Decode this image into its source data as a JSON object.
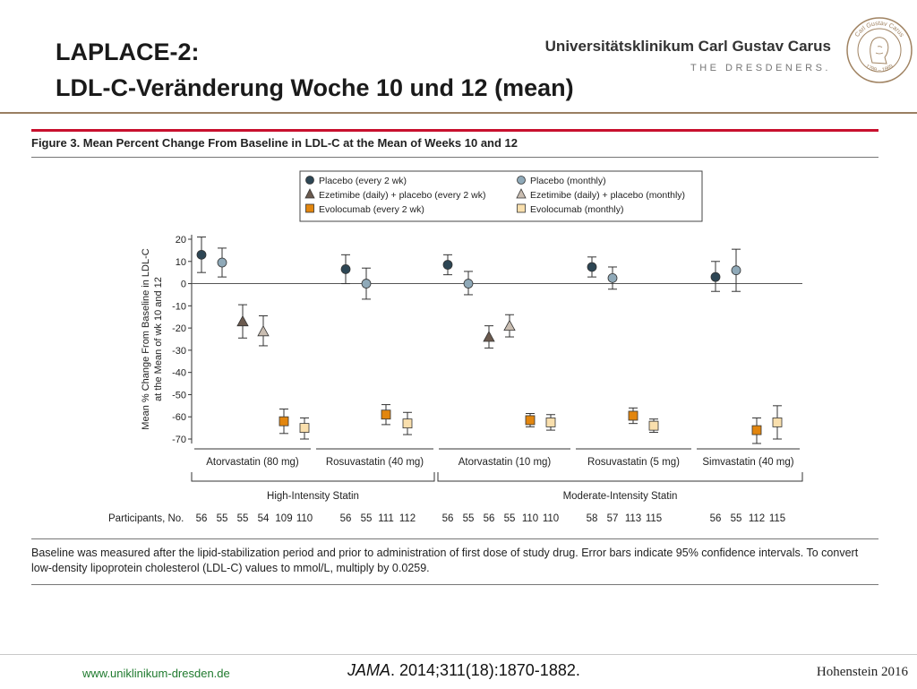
{
  "header": {
    "title_line1": "LAPLACE-2:",
    "title_line2": "LDL-C-Veränderung Woche 10 und 12 (mean)",
    "brand_name": "Universitätsklinikum Carl Gustav Carus",
    "brand_tagline": "THE DRESDENERS.",
    "seal_text_top": "Carl Gustav Carus",
    "seal_text_bottom": "1789 – 1869"
  },
  "figure": {
    "title": "Figure 3. Mean Percent Change From Baseline in LDL-C at the Mean of Weeks 10 and 12",
    "caption": "Baseline was measured after the lipid-stabilization period and prior to administration of first dose of study drug. Error bars indicate 95% confidence intervals. To convert low-density lipoprotein cholesterol (LDL-C) values to mmol/L, multiply by 0.0259."
  },
  "chart_data": {
    "type": "scatter",
    "title": "",
    "ylabel": "Mean % Change From Baseline in LDL-C at the Mean of wk 10 and 12",
    "ylabel_lines": [
      "Mean % Change From Baseline in LDL-C",
      "at the Mean of wk 10 and 12"
    ],
    "ylim": [
      -73,
      22
    ],
    "yticks": [
      20,
      10,
      0,
      -10,
      -20,
      -30,
      -40,
      -50,
      -60,
      -70
    ],
    "reference_line": 0,
    "legend_position": "top-center",
    "series_styles": [
      {
        "name": "Placebo (every 2 wk)",
        "shape": "circle",
        "color": "#2d4654"
      },
      {
        "name": "Placebo (monthly)",
        "shape": "circle",
        "color": "#8fa9b8"
      },
      {
        "name": "Ezetimibe (daily) + placebo (every 2 wk)",
        "shape": "triangle",
        "color": "#6b5a4e"
      },
      {
        "name": "Ezetimibe (daily) + placebo (monthly)",
        "shape": "triangle",
        "color": "#c9bdb1"
      },
      {
        "name": "Evolocumab (every 2 wk)",
        "shape": "square",
        "color": "#e2860f"
      },
      {
        "name": "Evolocumab (monthly)",
        "shape": "square",
        "color": "#f9dfad"
      }
    ],
    "categories": [
      "Atorvastatin (80 mg)",
      "Rosuvastatin (40 mg)",
      "Atorvastatin (10 mg)",
      "Rosuvastatin (5 mg)",
      "Simvastatin (40 mg)"
    ],
    "groups": [
      {
        "label": "High-Intensity Statin",
        "categories": [
          0,
          1
        ]
      },
      {
        "label": "Moderate-Intensity Statin",
        "categories": [
          2,
          3,
          4
        ]
      }
    ],
    "participants_label": "Participants, No.",
    "points": [
      {
        "category": 0,
        "series": 0,
        "value": 13,
        "ci": [
          5,
          21
        ],
        "n": "56"
      },
      {
        "category": 0,
        "series": 1,
        "value": 9.5,
        "ci": [
          3,
          16
        ],
        "n": "55"
      },
      {
        "category": 0,
        "series": 2,
        "value": -17,
        "ci": [
          -24.5,
          -9.5
        ],
        "n": "55"
      },
      {
        "category": 0,
        "series": 3,
        "value": -21.5,
        "ci": [
          -28,
          -14.5
        ],
        "n": "54"
      },
      {
        "category": 0,
        "series": 4,
        "value": -62,
        "ci": [
          -67.5,
          -56.5
        ],
        "n": "109"
      },
      {
        "category": 0,
        "series": 5,
        "value": -65,
        "ci": [
          -70,
          -60.5
        ],
        "n": "110"
      },
      {
        "category": 1,
        "series": 0,
        "value": 6.5,
        "ci": [
          0,
          13
        ],
        "n": "56"
      },
      {
        "category": 1,
        "series": 1,
        "value": 0,
        "ci": [
          -7,
          7
        ],
        "n": "55"
      },
      {
        "category": 1,
        "series": 4,
        "value": -59,
        "ci": [
          -63.5,
          -54.5
        ],
        "n": "111"
      },
      {
        "category": 1,
        "series": 5,
        "value": -63,
        "ci": [
          -68,
          -58
        ],
        "n": "112"
      },
      {
        "category": 2,
        "series": 0,
        "value": 8.5,
        "ci": [
          4,
          13
        ],
        "n": "56"
      },
      {
        "category": 2,
        "series": 1,
        "value": 0,
        "ci": [
          -5,
          5.5
        ],
        "n": "55"
      },
      {
        "category": 2,
        "series": 2,
        "value": -24,
        "ci": [
          -29,
          -19
        ],
        "n": "56"
      },
      {
        "category": 2,
        "series": 3,
        "value": -19,
        "ci": [
          -24,
          -14
        ],
        "n": "55"
      },
      {
        "category": 2,
        "series": 4,
        "value": -61.5,
        "ci": [
          -64.5,
          -58.5
        ],
        "n": "110"
      },
      {
        "category": 2,
        "series": 5,
        "value": -62.5,
        "ci": [
          -66,
          -59
        ],
        "n": "110"
      },
      {
        "category": 3,
        "series": 0,
        "value": 7.5,
        "ci": [
          3,
          12
        ],
        "n": "58"
      },
      {
        "category": 3,
        "series": 1,
        "value": 2.5,
        "ci": [
          -2.5,
          7.5
        ],
        "n": "57"
      },
      {
        "category": 3,
        "series": 4,
        "value": -59.5,
        "ci": [
          -63,
          -56
        ],
        "n": "113"
      },
      {
        "category": 3,
        "series": 5,
        "value": -64,
        "ci": [
          -67,
          -61
        ],
        "n": "115"
      },
      {
        "category": 4,
        "series": 0,
        "value": 3,
        "ci": [
          -3.5,
          10
        ],
        "n": "56"
      },
      {
        "category": 4,
        "series": 1,
        "value": 6,
        "ci": [
          -3.5,
          15.5
        ],
        "n": "55"
      },
      {
        "category": 4,
        "series": 4,
        "value": -66,
        "ci": [
          -72,
          -60.5
        ],
        "n": "112"
      },
      {
        "category": 4,
        "series": 5,
        "value": -62.5,
        "ci": [
          -70,
          -55
        ],
        "n": "115"
      }
    ]
  },
  "footer": {
    "website": "www.uniklinikum-dresden.de",
    "citation_journal": "JAMA",
    "citation_rest": ". 2014;311(18):1870-1882.",
    "author": "Hohenstein 2016"
  }
}
